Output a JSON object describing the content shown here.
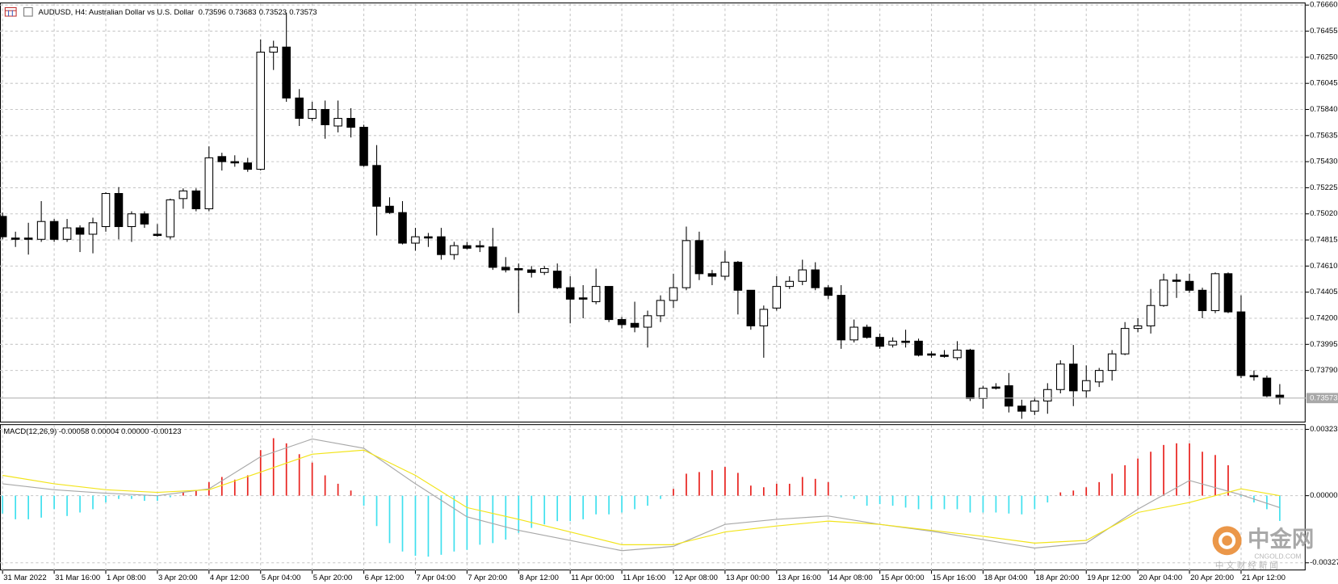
{
  "chart_data": [
    {
      "type": "candlestick",
      "title": "AUDUSD, H4:  Australian Dollar vs U.S. Dollar",
      "open": [
        0.75,
        0.7483,
        0.7483,
        0.7482,
        0.7496,
        0.7482,
        0.7491,
        0.7486,
        0.7492,
        0.7518,
        0.7492,
        0.7502,
        0.7486,
        0.7484,
        0.7514,
        0.752,
        0.7506,
        0.7547,
        0.7543,
        0.7542,
        0.7537,
        0.7629,
        0.7633,
        0.7593,
        0.7577,
        0.7584,
        0.7571,
        0.7577,
        0.757,
        0.754,
        0.7508,
        0.7503,
        0.7479,
        0.7484,
        0.7484,
        0.747,
        0.7477,
        0.7477,
        0.7476,
        0.746,
        0.7459,
        0.7458,
        0.7456,
        0.7457,
        0.7444,
        0.7436,
        0.7433,
        0.7445,
        0.7419,
        0.7416,
        0.7413,
        0.7422,
        0.7434,
        0.7444,
        0.7481,
        0.7455,
        0.7453,
        0.7464,
        0.7442,
        0.7414,
        0.7428,
        0.7445,
        0.7449,
        0.7458,
        0.7444,
        0.7438,
        0.7403,
        0.7413,
        0.7405,
        0.7399,
        0.7402,
        0.7402,
        0.7392,
        0.7391,
        0.7389,
        0.7395,
        0.7357,
        0.7366,
        0.7367,
        0.7351,
        0.7347,
        0.7355,
        0.7364,
        0.7384,
        0.7363,
        0.737,
        0.7379,
        0.7392,
        0.7412,
        0.7414,
        0.743,
        0.745,
        0.7449,
        0.7442,
        0.7426,
        0.7455,
        0.7425,
        0.7375,
        0.7373,
        0.73596
      ],
      "high": [
        0.7503,
        0.7488,
        0.7495,
        0.7512,
        0.7498,
        0.7498,
        0.7493,
        0.7499,
        0.7519,
        0.7523,
        0.7504,
        0.7504,
        0.7494,
        0.7514,
        0.7522,
        0.7522,
        0.7555,
        0.755,
        0.7548,
        0.7546,
        0.7639,
        0.7638,
        0.766,
        0.76,
        0.759,
        0.7591,
        0.7591,
        0.7585,
        0.7572,
        0.7556,
        0.7515,
        0.7512,
        0.7491,
        0.7487,
        0.7491,
        0.748,
        0.748,
        0.7481,
        0.7491,
        0.7468,
        0.7463,
        0.7461,
        0.7461,
        0.7463,
        0.7453,
        0.7446,
        0.7459,
        0.7445,
        0.7421,
        0.7433,
        0.7426,
        0.7438,
        0.7455,
        0.7492,
        0.7488,
        0.7458,
        0.7473,
        0.7465,
        0.7442,
        0.743,
        0.7453,
        0.7453,
        0.7466,
        0.7464,
        0.7446,
        0.7446,
        0.7419,
        0.7415,
        0.7408,
        0.7405,
        0.7411,
        0.7404,
        0.7394,
        0.7395,
        0.7402,
        0.7396,
        0.7367,
        0.7369,
        0.7377,
        0.7356,
        0.7358,
        0.7369,
        0.7387,
        0.7399,
        0.7383,
        0.7381,
        0.7395,
        0.7417,
        0.742,
        0.7443,
        0.7455,
        0.7455,
        0.7455,
        0.7444,
        0.7456,
        0.7456,
        0.7438,
        0.7379,
        0.7375,
        0.73683
      ],
      "low": [
        0.7482,
        0.7476,
        0.747,
        0.748,
        0.748,
        0.748,
        0.7472,
        0.7471,
        0.7488,
        0.7482,
        0.748,
        0.7491,
        0.7484,
        0.7482,
        0.7506,
        0.7504,
        0.7504,
        0.7536,
        0.7539,
        0.7535,
        0.7536,
        0.7615,
        0.759,
        0.7571,
        0.7575,
        0.7561,
        0.7566,
        0.7562,
        0.7539,
        0.7485,
        0.7502,
        0.7478,
        0.7473,
        0.7476,
        0.7466,
        0.7466,
        0.7474,
        0.7472,
        0.7458,
        0.7456,
        0.7424,
        0.7452,
        0.7454,
        0.7443,
        0.7416,
        0.742,
        0.7431,
        0.7417,
        0.7412,
        0.7409,
        0.7397,
        0.7417,
        0.7428,
        0.7442,
        0.745,
        0.7446,
        0.745,
        0.7423,
        0.7411,
        0.7389,
        0.7426,
        0.7443,
        0.7446,
        0.7442,
        0.7435,
        0.7396,
        0.7401,
        0.7404,
        0.7396,
        0.7397,
        0.7397,
        0.739,
        0.7389,
        0.7389,
        0.7387,
        0.7355,
        0.7349,
        0.7364,
        0.7346,
        0.7341,
        0.7344,
        0.7345,
        0.7361,
        0.7351,
        0.7357,
        0.7366,
        0.7371,
        0.7391,
        0.7409,
        0.7408,
        0.7429,
        0.7436,
        0.744,
        0.742,
        0.7424,
        0.7424,
        0.7373,
        0.7371,
        0.7358,
        0.73523
      ],
      "close": [
        0.7484,
        0.7482,
        0.7482,
        0.7496,
        0.7482,
        0.7491,
        0.7486,
        0.7495,
        0.7518,
        0.7492,
        0.7502,
        0.7494,
        0.7485,
        0.7513,
        0.752,
        0.7506,
        0.7546,
        0.7543,
        0.7542,
        0.7537,
        0.7629,
        0.7633,
        0.7593,
        0.7577,
        0.7584,
        0.7572,
        0.7577,
        0.757,
        0.754,
        0.7508,
        0.7503,
        0.7479,
        0.7484,
        0.7483,
        0.747,
        0.7477,
        0.7475,
        0.7476,
        0.746,
        0.7458,
        0.7458,
        0.7456,
        0.7459,
        0.7444,
        0.7435,
        0.7435,
        0.7445,
        0.7419,
        0.7415,
        0.7413,
        0.7422,
        0.7434,
        0.7444,
        0.7481,
        0.7455,
        0.7453,
        0.7464,
        0.7442,
        0.7414,
        0.7427,
        0.7445,
        0.7449,
        0.7458,
        0.7444,
        0.7438,
        0.7403,
        0.7413,
        0.7405,
        0.7398,
        0.7402,
        0.7401,
        0.7391,
        0.7391,
        0.739,
        0.7395,
        0.7357,
        0.7365,
        0.7365,
        0.7351,
        0.7347,
        0.7355,
        0.7364,
        0.7384,
        0.7363,
        0.7371,
        0.7379,
        0.7392,
        0.7412,
        0.7414,
        0.743,
        0.745,
        0.7449,
        0.7442,
        0.7426,
        0.7455,
        0.7425,
        0.7375,
        0.7374,
        0.7359,
        0.73573
      ],
      "up_color": "#ffffff",
      "down_color": "#000000",
      "xlim": [
        -0.2,
        101
      ],
      "xticks": [
        {
          "value": 0,
          "label": "31 Mar 2022"
        },
        {
          "value": 4,
          "label": "31 Mar 16:00"
        },
        {
          "value": 8,
          "label": "1 Apr 08:00"
        },
        {
          "value": 12,
          "label": "3 Apr 20:00"
        },
        {
          "value": 16,
          "label": "4 Apr 12:00"
        },
        {
          "value": 20,
          "label": "5 Apr 04:00"
        },
        {
          "value": 24,
          "label": "5 Apr 20:00"
        },
        {
          "value": 28,
          "label": "6 Apr 12:00"
        },
        {
          "value": 32,
          "label": "7 Apr 04:00"
        },
        {
          "value": 36,
          "label": "7 Apr 20:00"
        },
        {
          "value": 40,
          "label": "8 Apr 12:00"
        },
        {
          "value": 44,
          "label": "11 Apr 00:00"
        },
        {
          "value": 48,
          "label": "11 Apr 16:00"
        },
        {
          "value": 52,
          "label": "12 Apr 08:00"
        },
        {
          "value": 56,
          "label": "13 Apr 00:00"
        },
        {
          "value": 60,
          "label": "13 Apr 16:00"
        },
        {
          "value": 64,
          "label": "14 Apr 08:00"
        },
        {
          "value": 68,
          "label": "15 Apr 00:00"
        },
        {
          "value": 72,
          "label": "15 Apr 16:00"
        },
        {
          "value": 76,
          "label": "18 Apr 04:00"
        },
        {
          "value": 80,
          "label": "18 Apr 20:00"
        },
        {
          "value": 84,
          "label": "19 Apr 12:00"
        },
        {
          "value": 88,
          "label": "20 Apr 04:00"
        },
        {
          "value": 92,
          "label": "20 Apr 20:00"
        },
        {
          "value": 96,
          "label": "21 Apr 12:00"
        }
      ],
      "ylim": [
        0.73388,
        0.76673
      ],
      "yticks": [
        {
          "value": 0.7666,
          "label": "0.76660"
        },
        0.76455,
        {
          "value": 0.7625,
          "label": "0.76250"
        },
        0.76045,
        {
          "value": 0.7584,
          "label": "0.75840"
        },
        0.75635,
        {
          "value": 0.7543,
          "label": "0.75430"
        },
        0.75225,
        {
          "value": 0.7502,
          "label": "0.75020"
        },
        0.74815,
        {
          "value": 0.7461,
          "label": "0.74610"
        },
        0.74405,
        {
          "value": 0.742,
          "label": "0.74200"
        },
        0.73995,
        {
          "value": 0.7379,
          "label": "0.73790"
        }
      ],
      "grid": true
    },
    {
      "type": "macd",
      "title": "MACD(12,26,9) -0.00058 0.00004 0.00000 -0.00123",
      "histogram": {
        "values": [
          -0.00087,
          -0.00115,
          -0.00115,
          -0.00107,
          -0.00066,
          -0.00099,
          -0.00082,
          -0.00066,
          -0.00033,
          -0.00016,
          -0.00016,
          -0.00025,
          -0.00025,
          -8e-05,
          0.00016,
          0.00025,
          0.00066,
          0.00091,
          0.00078,
          0.00099,
          0.00222,
          0.0028,
          0.00255,
          0.00202,
          0.00161,
          0.00099,
          0.00058,
          0.00025,
          -0.00049,
          -0.00148,
          -0.00231,
          -0.00272,
          -0.00293,
          -0.00297,
          -0.00288,
          -0.00272,
          -0.00264,
          -0.00239,
          -0.00231,
          -0.00214,
          -0.00181,
          -0.00157,
          -0.0014,
          -0.00124,
          -0.00124,
          -0.00115,
          -0.00091,
          -0.00091,
          -0.00082,
          -0.00066,
          -0.00049,
          -0.00016,
          0.00033,
          0.00107,
          0.00115,
          0.00124,
          0.0014,
          0.00111,
          0.00049,
          0.00041,
          0.00058,
          0.00058,
          0.00091,
          0.00082,
          0.00066,
          -8e-05,
          -0.00016,
          -0.00049,
          -0.00041,
          -0.00049,
          -0.00058,
          -0.00066,
          -0.00066,
          -0.00066,
          -0.00066,
          -0.00082,
          -0.00082,
          -0.00082,
          -0.00087,
          -0.00091,
          -0.00066,
          -0.00033,
          0.00016,
          0.00025,
          0.00041,
          0.00066,
          0.00107,
          0.00148,
          0.00181,
          0.00214,
          0.00247,
          0.00255,
          0.00255,
          0.00214,
          0.00198,
          0.00148,
          -4e-05,
          -0.00033,
          -0.00066,
          -0.00123
        ],
        "up_color": "#e8201c",
        "down_color": "#3fe0ee"
      },
      "series": [
        {
          "color": "#a8a8a8",
          "x": [
            0,
            4,
            8,
            12,
            16,
            20,
            24,
            28,
            32,
            36,
            40,
            44,
            48,
            52,
            56,
            60,
            64,
            68,
            72,
            76,
            80,
            84,
            88,
            92,
            96,
            99
          ],
          "values": [
            0.00058,
            0.00029,
            0.00012,
            0,
            0.00033,
            0.0019,
            0.00276,
            0.00231,
            0.00058,
            -0.00103,
            -0.00169,
            -0.00218,
            -0.00268,
            -0.00247,
            -0.0014,
            -0.00115,
            -0.00099,
            -0.0014,
            -0.00173,
            -0.00214,
            -0.00255,
            -0.00231,
            -0.00066,
            0.00074,
            4e-05,
            -0.00058
          ]
        },
        {
          "color": "#f2e41a",
          "x": [
            0,
            4,
            8,
            12,
            16,
            20,
            24,
            28,
            32,
            36,
            40,
            44,
            48,
            52,
            56,
            60,
            64,
            68,
            72,
            76,
            80,
            84,
            88,
            92,
            96,
            99
          ],
          "values": [
            0.00099,
            0.00058,
            0.00029,
            0.00016,
            0.00029,
            0.00115,
            0.00202,
            0.00222,
            0.00099,
            -0.00058,
            -0.00115,
            -0.00177,
            -0.00239,
            -0.00239,
            -0.00177,
            -0.00148,
            -0.00124,
            -0.0014,
            -0.00169,
            -0.00198,
            -0.00231,
            -0.00218,
            -0.00082,
            -0.00033,
            0.00033,
            0
          ]
        }
      ],
      "ylim": [
        -0.00364,
        0.00344
      ],
      "yticks": [
        0.00323,
        {
          "value": 0,
          "label": "0.00000"
        },
        -0.00327
      ],
      "grid": true
    }
  ],
  "watermark": {
    "brand": "中金网",
    "domain": "CNGOLD.COM",
    "tagline": "中 文 财 经 新 闻"
  }
}
